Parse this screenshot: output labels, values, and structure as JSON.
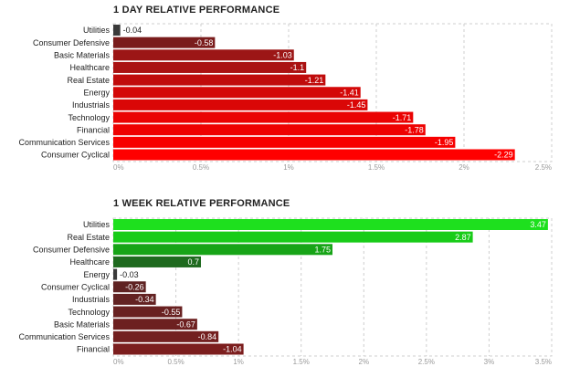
{
  "chart_data": [
    {
      "type": "bar",
      "orientation": "horizontal",
      "title": "1 DAY RELATIVE PERFORMANCE",
      "categories": [
        "Utilities",
        "Consumer Defensive",
        "Basic Materials",
        "Healthcare",
        "Real Estate",
        "Energy",
        "Industrials",
        "Technology",
        "Financial",
        "Communication Services",
        "Consumer Cyclical"
      ],
      "values": [
        -0.04,
        -0.58,
        -1.03,
        -1.1,
        -1.21,
        -1.41,
        -1.45,
        -1.71,
        -1.78,
        -1.95,
        -2.29
      ],
      "value_labels": [
        "-0.04",
        "-0.58",
        "-1.03",
        "-1.1",
        "-1.21",
        "-1.41",
        "-1.45",
        "-1.71",
        "-1.78",
        "-1.95",
        "-2.29"
      ],
      "colors": [
        "#3a3a3a",
        "#7a1c1c",
        "#9c1616",
        "#aa1212",
        "#c00c0c",
        "#d40808",
        "#da0707",
        "#ea0303",
        "#ee0202",
        "#f70000",
        "#ff0000"
      ],
      "xlim": [
        0,
        2.5
      ],
      "xticks": [
        "0%",
        "0.5%",
        "1%",
        "1.5%",
        "2%",
        "2.5%"
      ],
      "grid": true
    },
    {
      "type": "bar",
      "orientation": "horizontal",
      "title": "1 WEEK RELATIVE PERFORMANCE",
      "categories": [
        "Utilities",
        "Real Estate",
        "Consumer Defensive",
        "Healthcare",
        "Energy",
        "Consumer Cyclical",
        "Industrials",
        "Technology",
        "Basic Materials",
        "Communication Services",
        "Financial"
      ],
      "values": [
        3.47,
        2.87,
        1.75,
        0.7,
        -0.03,
        -0.26,
        -0.34,
        -0.55,
        -0.67,
        -0.84,
        -1.04
      ],
      "value_labels": [
        "3.47",
        "2.87",
        "1.75",
        "0.7",
        "-0.03",
        "-0.26",
        "-0.34",
        "-0.55",
        "-0.67",
        "-0.84",
        "-1.04"
      ],
      "colors": [
        "#1ee01e",
        "#18cc18",
        "#17a417",
        "#1f6a1f",
        "#3a3a3a",
        "#5f2323",
        "#632222",
        "#692121",
        "#6d2020",
        "#732020",
        "#7c1e1e"
      ],
      "xlim": [
        0,
        3.5
      ],
      "xticks": [
        "0%",
        "0.5%",
        "1%",
        "1.5%",
        "2%",
        "2.5%",
        "3%",
        "3.5%"
      ],
      "grid": true
    }
  ]
}
